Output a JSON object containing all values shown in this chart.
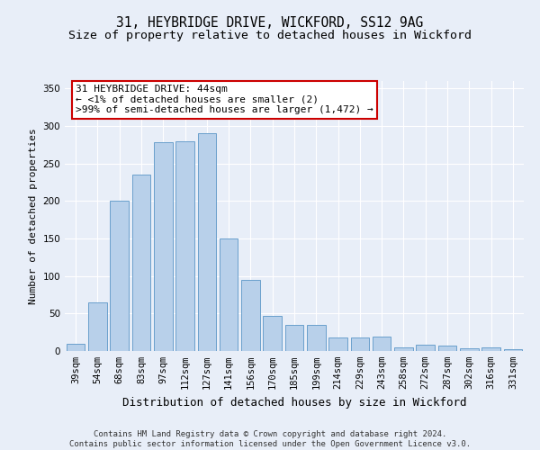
{
  "title_line1": "31, HEYBRIDGE DRIVE, WICKFORD, SS12 9AG",
  "title_line2": "Size of property relative to detached houses in Wickford",
  "xlabel": "Distribution of detached houses by size in Wickford",
  "ylabel": "Number of detached properties",
  "categories": [
    "39sqm",
    "54sqm",
    "68sqm",
    "83sqm",
    "97sqm",
    "112sqm",
    "127sqm",
    "141sqm",
    "156sqm",
    "170sqm",
    "185sqm",
    "199sqm",
    "214sqm",
    "229sqm",
    "243sqm",
    "258sqm",
    "272sqm",
    "287sqm",
    "302sqm",
    "316sqm",
    "331sqm"
  ],
  "values": [
    10,
    65,
    200,
    235,
    278,
    280,
    290,
    150,
    95,
    47,
    35,
    35,
    18,
    18,
    19,
    5,
    9,
    7,
    4,
    5,
    3
  ],
  "bar_color": "#b8d0ea",
  "bar_edge_color": "#6aa0cc",
  "ylim": [
    0,
    360
  ],
  "yticks": [
    0,
    50,
    100,
    150,
    200,
    250,
    300,
    350
  ],
  "annotation_text": "31 HEYBRIDGE DRIVE: 44sqm\n← <1% of detached houses are smaller (2)\n>99% of semi-detached houses are larger (1,472) →",
  "annotation_box_facecolor": "#ffffff",
  "annotation_box_edgecolor": "#cc0000",
  "footer_text": "Contains HM Land Registry data © Crown copyright and database right 2024.\nContains public sector information licensed under the Open Government Licence v3.0.",
  "background_color": "#e8eef8",
  "grid_color": "#ffffff",
  "title_fontsize": 10.5,
  "subtitle_fontsize": 9.5,
  "ylabel_fontsize": 8,
  "xlabel_fontsize": 9,
  "tick_fontsize": 7.5,
  "annotation_fontsize": 8,
  "footer_fontsize": 6.5
}
